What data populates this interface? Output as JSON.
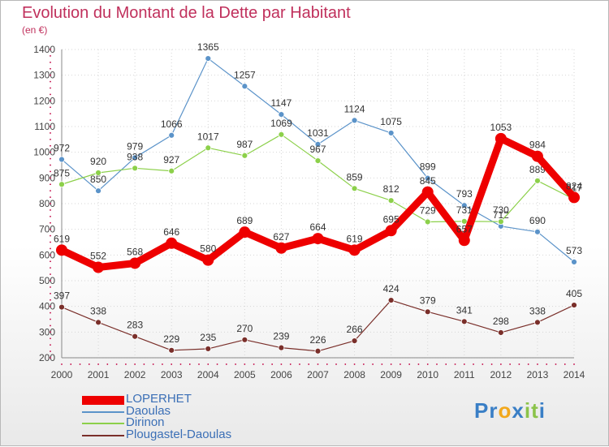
{
  "chart_data": {
    "type": "line",
    "title": "Evolution du Montant de la Dette par Habitant",
    "subtitle": "(en €)",
    "x": [
      "2000",
      "2001",
      "2002",
      "2003",
      "2004",
      "2005",
      "2006",
      "2007",
      "2008",
      "2009",
      "2010",
      "2011",
      "2012",
      "2013",
      "2014"
    ],
    "ylim": [
      200,
      1400
    ],
    "yticks": [
      "200",
      "300",
      "400",
      "500",
      "600",
      "700",
      "800",
      "900",
      "1000",
      "1100",
      "1200",
      "1300",
      "1400"
    ],
    "grid": true,
    "legend_position": "bottom-left",
    "series": [
      {
        "name": "Daoulas",
        "color": "#5b93c9",
        "values": [
          972,
          850,
          979,
          1066,
          1365,
          1257,
          1147,
          1031,
          1124,
          1075,
          899,
          793,
          712,
          690,
          573
        ],
        "labels": [
          "972",
          "850",
          "979",
          "1066",
          "1365",
          "1257",
          "1147",
          "1031",
          "1124",
          "1075",
          "899",
          "793",
          "712",
          "690",
          "573"
        ]
      },
      {
        "name": "Dirinon",
        "color": "#8cd04a",
        "values": [
          875,
          920,
          938,
          927,
          1017,
          987,
          1069,
          967,
          859,
          812,
          729,
          731,
          730,
          889,
          817
        ],
        "labels": [
          "875",
          "920",
          "938",
          "927",
          "1017",
          "987",
          "1069",
          "967",
          "859",
          "812",
          "729",
          "731",
          "730",
          "889",
          "817"
        ]
      },
      {
        "name": "Plougastel-Daoulas",
        "color": "#7a2f2a",
        "values": [
          397,
          338,
          283,
          229,
          235,
          270,
          239,
          226,
          266,
          424,
          379,
          341,
          298,
          338,
          405
        ],
        "labels": [
          "397",
          "338",
          "283",
          "229",
          "235",
          "270",
          "239",
          "226",
          "266",
          "424",
          "379",
          "341",
          "298",
          "338",
          "405"
        ]
      },
      {
        "name": "LOPERHET",
        "color": "#ee0000",
        "values": [
          619,
          552,
          568,
          646,
          580,
          689,
          627,
          664,
          619,
          695,
          845,
          657,
          1053,
          984,
          824
        ],
        "labels": [
          "619",
          "552",
          "568",
          "646",
          "580",
          "689",
          "627",
          "664",
          "619",
          "695",
          "845",
          "657",
          "1053",
          "984",
          "824"
        ]
      }
    ],
    "legend": [
      "LOPERHET",
      "Daoulas",
      "Dirinon",
      "Plougastel-Daoulas"
    ]
  },
  "brand": {
    "letters": [
      "P",
      "r",
      "o",
      "x",
      "i",
      "t",
      "i"
    ],
    "colors": [
      "#3a7fc6",
      "#3a7fc6",
      "#f2a81c",
      "#3a7fc6",
      "#8bc34a",
      "#8bc34a",
      "#3a7fc6"
    ]
  }
}
